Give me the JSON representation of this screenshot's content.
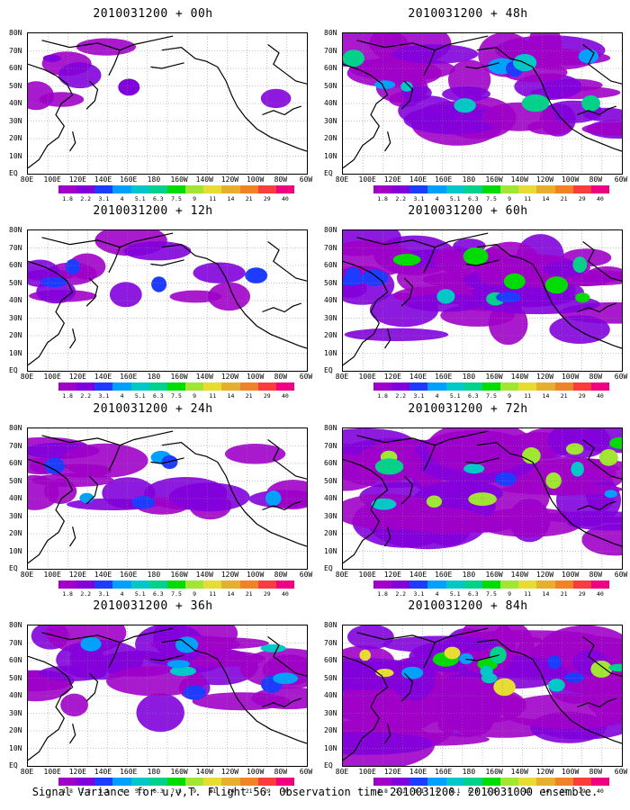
{
  "caption": "Signal Variance for u,v,T. Flight 56. Observation time 2010031200. 2010031000 ensemble.",
  "lat_labels": [
    "80N",
    "70N",
    "60N",
    "50N",
    "40N",
    "30N",
    "20N",
    "10N",
    "EQ"
  ],
  "lon_labels": [
    "80E",
    "100E",
    "120E",
    "140E",
    "160E",
    "180",
    "160W",
    "140W",
    "120W",
    "100W",
    "80W",
    "60W"
  ],
  "colorbar": {
    "values": [
      "1.8",
      "2.2",
      "3.1",
      "4",
      "5.1",
      "6.3",
      "7.5",
      "9",
      "11",
      "14",
      "21",
      "29",
      "40"
    ],
    "colors": [
      "#a000c8",
      "#8200dc",
      "#1e3cff",
      "#00a0ff",
      "#00c8c8",
      "#00d28c",
      "#00dc00",
      "#a0e632",
      "#e6dc32",
      "#e6af2d",
      "#f08228",
      "#fa3c3c",
      "#f00082"
    ]
  },
  "panels": [
    {
      "title": "2010031200 + 00h",
      "intensity": 0
    },
    {
      "title": "2010031200 + 12h",
      "intensity": 1
    },
    {
      "title": "2010031200 + 24h",
      "intensity": 2
    },
    {
      "title": "2010031200 + 36h",
      "intensity": 3
    },
    {
      "title": "2010031200 + 48h",
      "intensity": 4
    },
    {
      "title": "2010031200 + 60h",
      "intensity": 5
    },
    {
      "title": "2010031200 + 72h",
      "intensity": 6
    },
    {
      "title": "2010031200 + 84h",
      "intensity": 7
    }
  ]
}
